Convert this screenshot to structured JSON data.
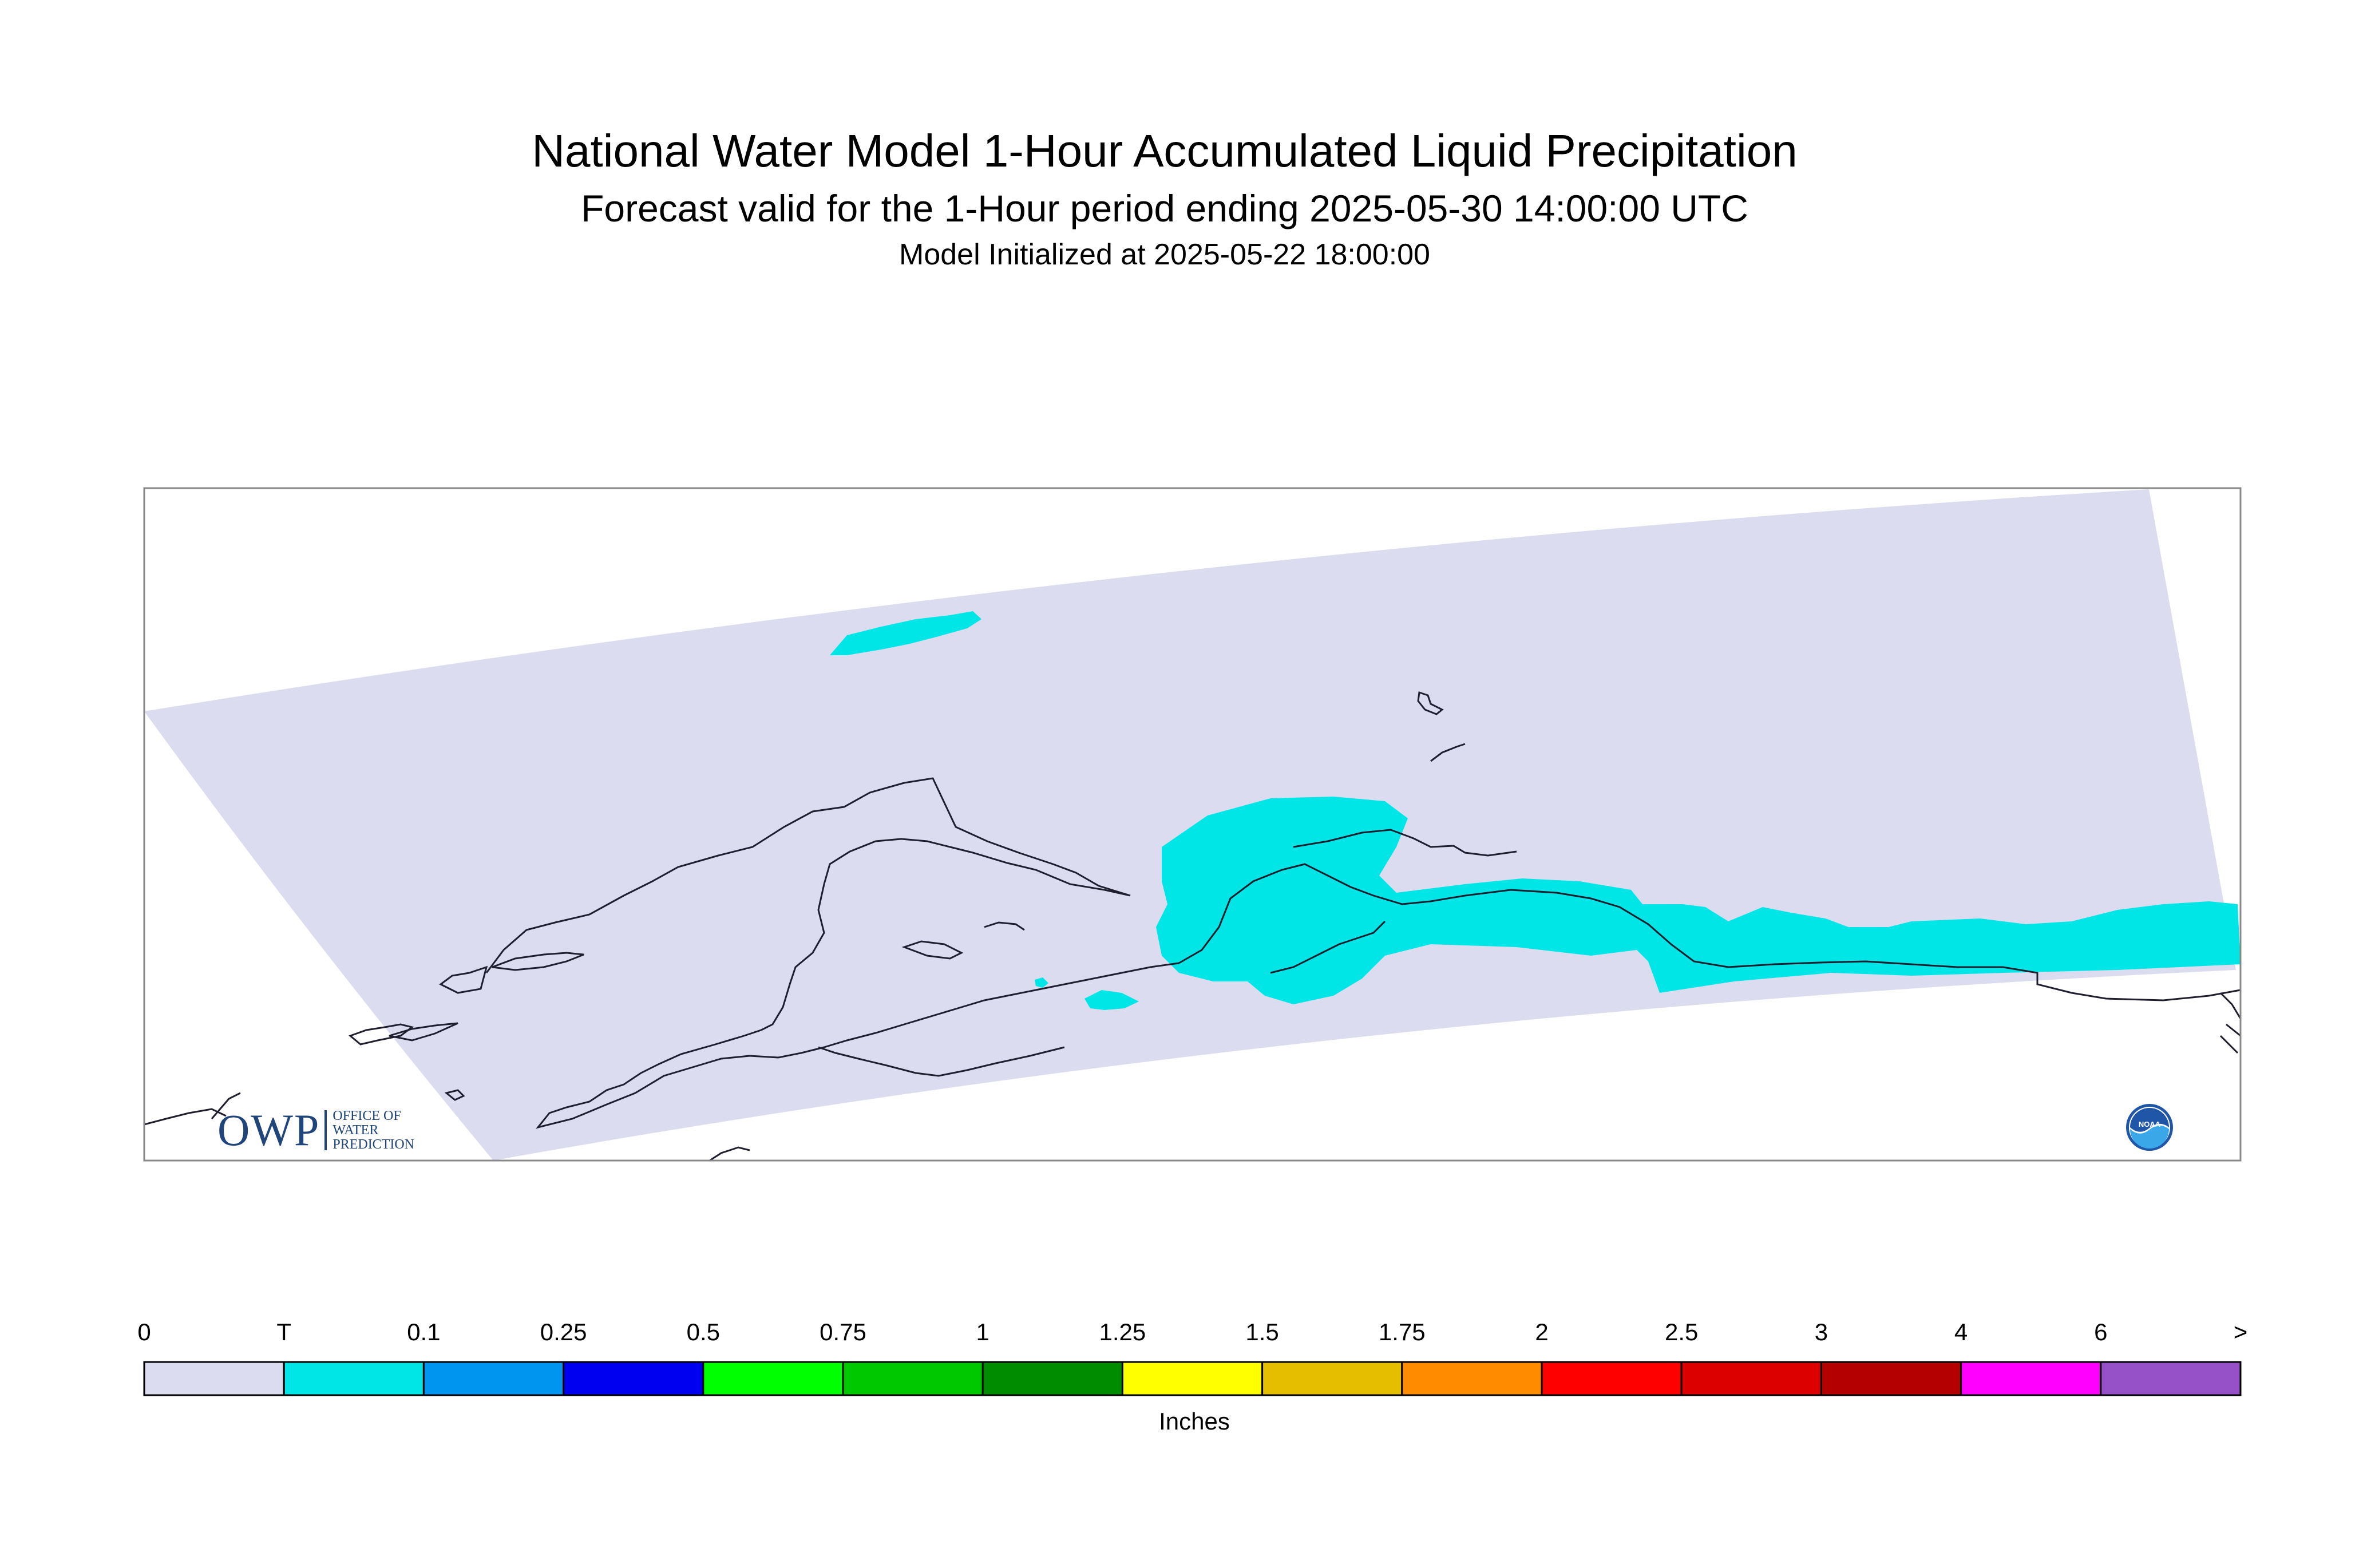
{
  "title": "National Water Model 1-Hour Accumulated Liquid Precipitation",
  "subtitle": "Forecast valid for the 1-Hour period ending 2025-05-30 14:00:00 UTC",
  "init_line": "Model Initialized at 2025-05-22 18:00:00",
  "legend": {
    "labels": [
      "0",
      "T",
      "0.1",
      "0.25",
      "0.5",
      "0.75",
      "1",
      "1.25",
      "1.5",
      "1.75",
      "2",
      "2.5",
      "3",
      "4",
      "6",
      ">"
    ],
    "colors": [
      "#dcdcf0",
      "#00e6e6",
      "#0096f0",
      "#0000f0",
      "#00ff00",
      "#00c800",
      "#008c00",
      "#ffff00",
      "#e6be00",
      "#ff8c00",
      "#ff0000",
      "#dc0000",
      "#b40000",
      "#ff00ff",
      "#9650c8"
    ],
    "units": "Inches"
  },
  "colors": {
    "domain_fill": "#dcdcf0",
    "trace_fill": "#00e6e6",
    "coastline": "#1e1e2e",
    "frame": "#888888"
  },
  "logos": {
    "owp": {
      "letters": "OWP",
      "lines": [
        "OFFICE OF",
        "WATER",
        "PREDICTION"
      ]
    },
    "noaa": {
      "text": "NOAA"
    }
  }
}
